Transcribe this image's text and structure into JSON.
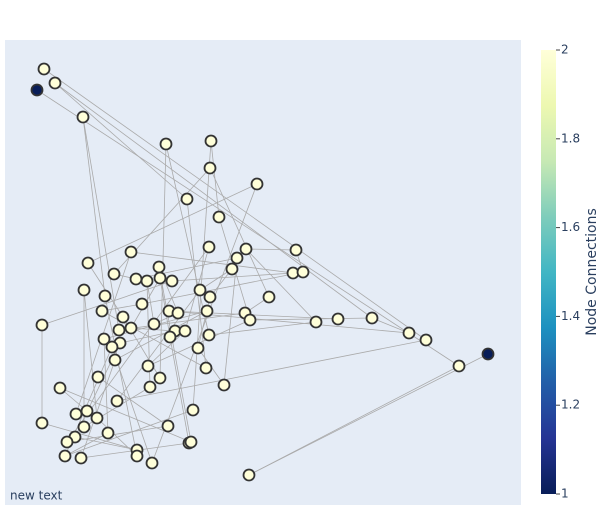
{
  "chart_data": {
    "type": "scatter",
    "annotation": "new text",
    "x": [
      39,
      50,
      32,
      78,
      161,
      206,
      205,
      252,
      182,
      214,
      204,
      241,
      232,
      227,
      291,
      288,
      298,
      126,
      154,
      83,
      109,
      131,
      142,
      155,
      167,
      79,
      100,
      195,
      205,
      264,
      137,
      97,
      164,
      173,
      202,
      240,
      245,
      311,
      333,
      367,
      118,
      149,
      126,
      114,
      170,
      180,
      165,
      204,
      37,
      99,
      115,
      107,
      404,
      421,
      193,
      110,
      143,
      201,
      454,
      483,
      93,
      155,
      145,
      219,
      55,
      112,
      188,
      71,
      82,
      92,
      37,
      79,
      163,
      103,
      70,
      62,
      184,
      186,
      132,
      132,
      60,
      76,
      147,
      244
    ],
    "y": [
      436,
      422,
      415,
      388,
      361,
      364,
      337,
      321,
      306,
      288,
      258,
      256,
      247,
      236,
      255,
      232,
      233,
      253,
      238,
      242,
      231,
      226,
      224,
      227,
      224,
      215,
      209,
      215,
      208,
      208,
      201,
      194,
      194,
      192,
      194,
      192,
      185,
      183,
      186,
      187,
      188,
      181,
      177,
      175,
      174,
      174,
      168,
      170,
      180,
      166,
      162,
      158,
      172,
      165,
      157,
      145,
      139,
      137,
      139,
      151,
      128,
      127,
      118,
      120,
      117,
      104,
      95,
      91,
      94,
      87,
      82,
      78,
      79,
      72,
      68,
      63,
      62,
      63,
      55,
      49,
      49,
      47,
      42,
      30
    ],
    "values": [
      2,
      2,
      1,
      2,
      2,
      2,
      2,
      2,
      2,
      2,
      2,
      2,
      2,
      2,
      2,
      2,
      2,
      2,
      2,
      2,
      2,
      2,
      2,
      2,
      2,
      2,
      2,
      2,
      2,
      2,
      2,
      2,
      2,
      2,
      2,
      2,
      2,
      2,
      2,
      2,
      2,
      2,
      2,
      2,
      2,
      2,
      2,
      2,
      2,
      2,
      2,
      2,
      2,
      2,
      2,
      2,
      2,
      2,
      2,
      1,
      2,
      2,
      2,
      2,
      2,
      2,
      2,
      2,
      2,
      2,
      2,
      2,
      2,
      2,
      2,
      2,
      2,
      2,
      2,
      2,
      2,
      2,
      2,
      2
    ],
    "edges": [
      [
        0,
        53
      ],
      [
        1,
        39
      ],
      [
        2,
        58
      ],
      [
        1,
        8
      ],
      [
        3,
        26
      ],
      [
        3,
        43
      ],
      [
        4,
        47
      ],
      [
        4,
        61
      ],
      [
        5,
        9
      ],
      [
        5,
        66
      ],
      [
        6,
        29
      ],
      [
        6,
        20
      ],
      [
        7,
        82
      ],
      [
        7,
        19
      ],
      [
        8,
        57
      ],
      [
        9,
        36
      ],
      [
        10,
        45
      ],
      [
        10,
        75
      ],
      [
        11,
        37
      ],
      [
        11,
        14
      ],
      [
        12,
        63
      ],
      [
        12,
        21
      ],
      [
        13,
        28
      ],
      [
        14,
        16
      ],
      [
        15,
        24
      ],
      [
        15,
        17
      ],
      [
        16,
        30
      ],
      [
        17,
        67
      ],
      [
        18,
        77
      ],
      [
        18,
        33
      ],
      [
        19,
        40
      ],
      [
        22,
        41
      ],
      [
        22,
        62
      ],
      [
        23,
        42
      ],
      [
        23,
        46
      ],
      [
        24,
        48
      ],
      [
        25,
        69
      ],
      [
        25,
        71
      ],
      [
        26,
        79
      ],
      [
        27,
        65
      ],
      [
        28,
        54
      ],
      [
        30,
        31
      ],
      [
        31,
        57
      ],
      [
        32,
        38
      ],
      [
        32,
        52
      ],
      [
        33,
        41
      ],
      [
        34,
        49
      ],
      [
        34,
        55
      ],
      [
        35,
        43
      ],
      [
        36,
        56
      ],
      [
        37,
        47
      ],
      [
        39,
        52
      ],
      [
        40,
        61
      ],
      [
        42,
        44
      ],
      [
        44,
        50
      ],
      [
        45,
        56
      ],
      [
        46,
        76
      ],
      [
        48,
        70
      ],
      [
        49,
        73
      ],
      [
        50,
        74
      ],
      [
        51,
        82
      ],
      [
        51,
        80
      ],
      [
        53,
        65
      ],
      [
        54,
        63
      ],
      [
        55,
        81
      ],
      [
        58,
        83
      ],
      [
        59,
        83
      ],
      [
        60,
        72
      ],
      [
        62,
        71
      ],
      [
        64,
        77
      ],
      [
        66,
        80
      ],
      [
        67,
        68
      ],
      [
        69,
        79
      ],
      [
        70,
        78
      ],
      [
        72,
        75
      ],
      [
        73,
        80
      ],
      [
        74,
        78
      ],
      [
        76,
        81
      ],
      [
        64,
        68
      ],
      [
        20,
        21
      ],
      [
        35,
        29
      ],
      [
        13,
        27
      ],
      [
        36,
        39
      ]
    ],
    "xlim": [
      0,
      516
    ],
    "ylim": [
      0,
      465
    ],
    "colorbar_title": "Node Connections",
    "colorbar_lim": [
      1,
      2
    ],
    "colorbar_ticks": [
      1,
      1.2,
      1.4,
      1.6,
      1.8,
      2
    ],
    "colorscale": [
      "#081d58",
      "#253494",
      "#225ea8",
      "#1d91c0",
      "#41b6c4",
      "#7fcdbb",
      "#c7e9b4",
      "#edf8b1",
      "#ffffd9"
    ],
    "edge_color": "#aaaaaa",
    "background": "#e5ecf6"
  }
}
